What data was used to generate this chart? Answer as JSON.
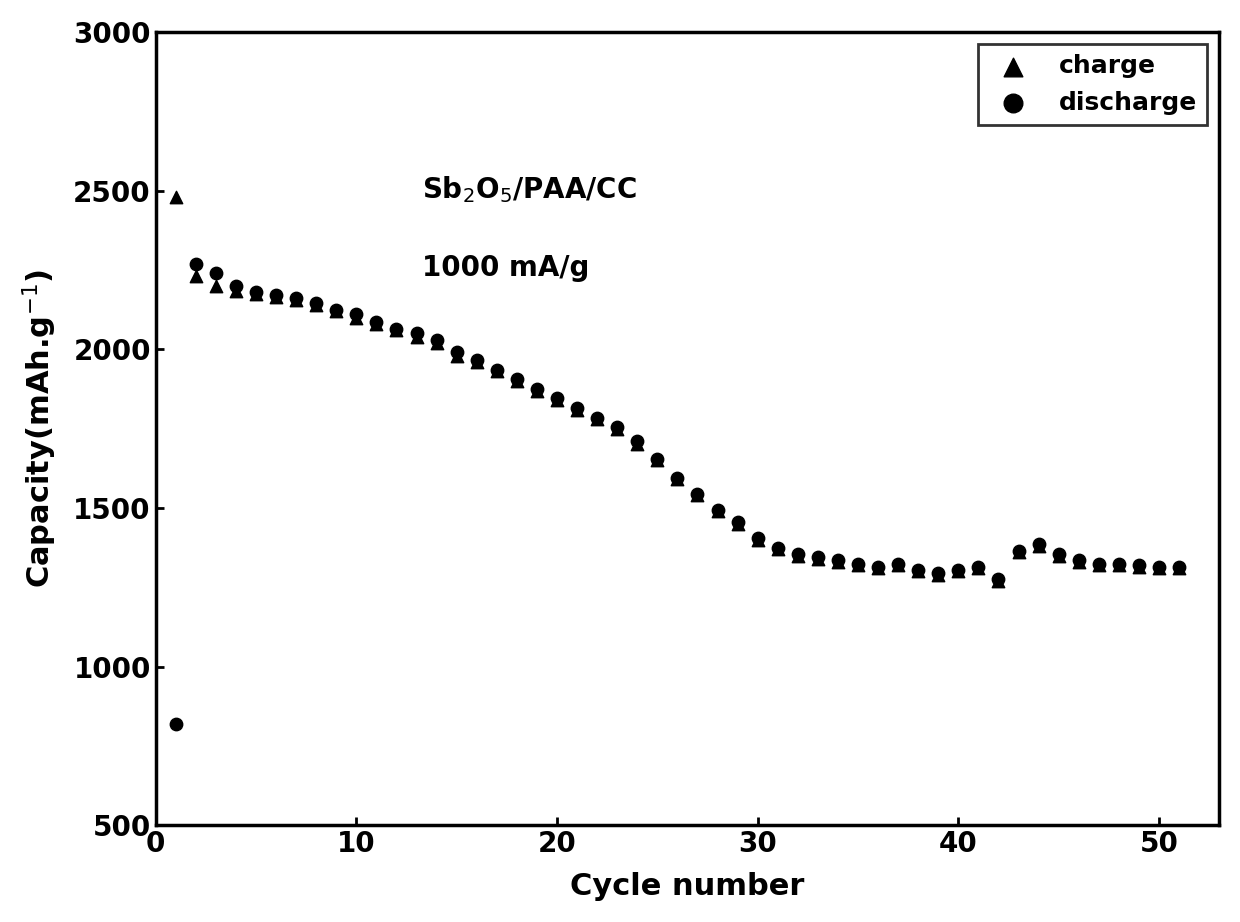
{
  "charge_cycles": [
    1,
    2,
    3,
    4,
    5,
    6,
    7,
    8,
    9,
    10,
    11,
    12,
    13,
    14,
    15,
    16,
    17,
    18,
    19,
    20,
    21,
    22,
    23,
    24,
    25,
    26,
    27,
    28,
    29,
    30,
    31,
    32,
    33,
    34,
    35,
    36,
    37,
    38,
    39,
    40,
    41,
    42,
    43,
    44,
    45,
    46,
    47,
    48,
    49,
    50,
    51
  ],
  "charge_values": [
    2480,
    2230,
    2200,
    2185,
    2175,
    2165,
    2155,
    2140,
    2120,
    2100,
    2080,
    2060,
    2040,
    2020,
    1980,
    1960,
    1930,
    1900,
    1870,
    1840,
    1810,
    1780,
    1750,
    1700,
    1650,
    1590,
    1540,
    1490,
    1450,
    1400,
    1370,
    1350,
    1340,
    1330,
    1320,
    1310,
    1320,
    1300,
    1290,
    1300,
    1310,
    1270,
    1360,
    1380,
    1350,
    1330,
    1320,
    1320,
    1315,
    1310,
    1310
  ],
  "discharge_cycles": [
    1,
    2,
    3,
    4,
    5,
    6,
    7,
    8,
    9,
    10,
    11,
    12,
    13,
    14,
    15,
    16,
    17,
    18,
    19,
    20,
    21,
    22,
    23,
    24,
    25,
    26,
    27,
    28,
    29,
    30,
    31,
    32,
    33,
    34,
    35,
    36,
    37,
    38,
    39,
    40,
    41,
    42,
    43,
    44,
    45,
    46,
    47,
    48,
    49,
    50,
    51
  ],
  "discharge_values": [
    820,
    2270,
    2240,
    2200,
    2180,
    2170,
    2160,
    2145,
    2125,
    2110,
    2085,
    2065,
    2050,
    2030,
    1990,
    1965,
    1935,
    1905,
    1875,
    1845,
    1815,
    1785,
    1755,
    1710,
    1655,
    1595,
    1545,
    1495,
    1455,
    1405,
    1375,
    1355,
    1345,
    1335,
    1325,
    1315,
    1325,
    1305,
    1295,
    1305,
    1315,
    1275,
    1365,
    1385,
    1355,
    1335,
    1325,
    1325,
    1320,
    1315,
    1315
  ],
  "ylabel": "Capacity(mAh.g$^{-1}$)",
  "xlabel": "Cycle number",
  "annotation_line1": "Sb$_2$O$_5$/PAA/CC",
  "annotation_line2": "1000 mA/g",
  "ylim": [
    500,
    3000
  ],
  "xlim": [
    0,
    53
  ],
  "yticks": [
    500,
    1000,
    1500,
    2000,
    2500,
    3000
  ],
  "xticks": [
    0,
    10,
    20,
    30,
    40,
    50
  ],
  "marker_size": 80,
  "color": "black",
  "legend_charge": "charge",
  "legend_discharge": "discharge",
  "label_fontsize": 22,
  "tick_fontsize": 20,
  "legend_fontsize": 18,
  "annot_fontsize": 20,
  "background_color": "#ffffff"
}
